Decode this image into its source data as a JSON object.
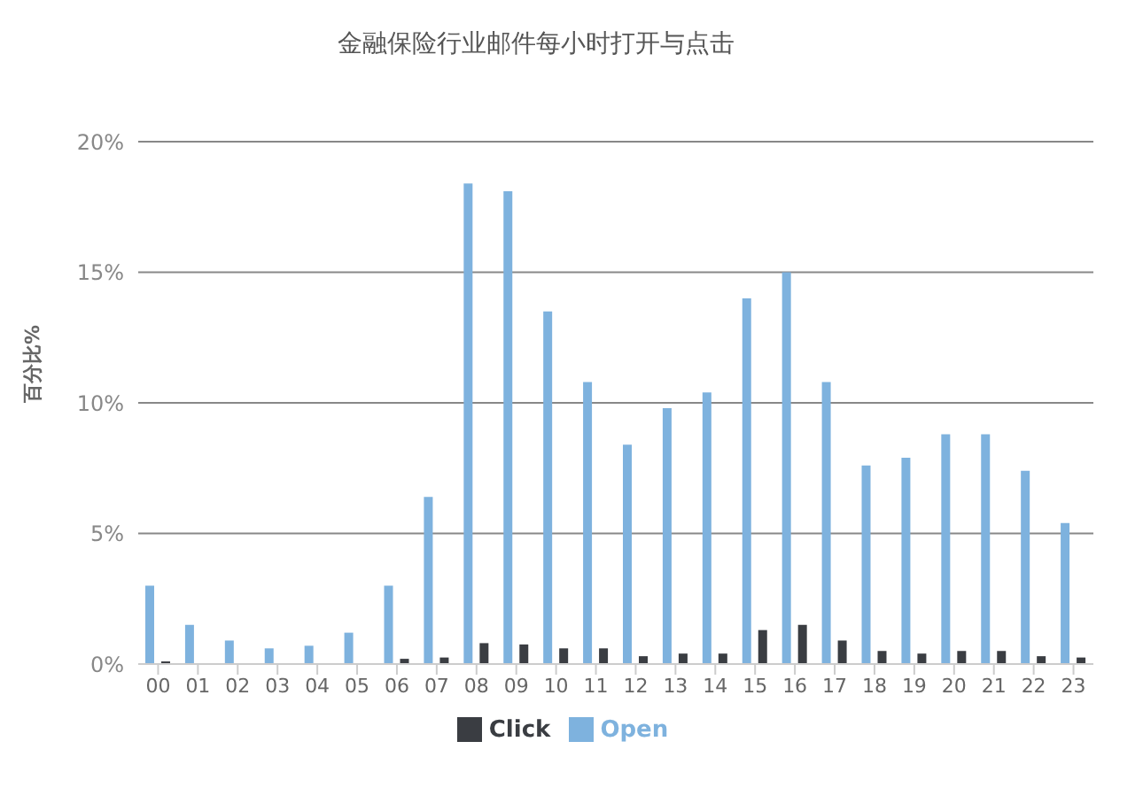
{
  "chart_data": {
    "type": "bar",
    "title": "金融保险行业邮件每小时打开与点击",
    "ylabel": "百分比%",
    "categories": [
      "00",
      "01",
      "02",
      "03",
      "04",
      "05",
      "06",
      "07",
      "08",
      "09",
      "10",
      "11",
      "12",
      "13",
      "14",
      "15",
      "16",
      "17",
      "18",
      "19",
      "20",
      "21",
      "22",
      "23"
    ],
    "series": [
      {
        "name": "Open",
        "color": "#7eb2de",
        "values": [
          3.0,
          1.5,
          0.9,
          0.6,
          0.7,
          1.2,
          3.0,
          6.4,
          18.4,
          18.1,
          13.5,
          10.8,
          8.4,
          9.8,
          10.4,
          14.0,
          15.0,
          10.8,
          7.6,
          7.9,
          8.8,
          8.8,
          7.4,
          5.4
        ]
      },
      {
        "name": "Click",
        "color": "#3a3d42",
        "values": [
          0.1,
          null,
          null,
          null,
          null,
          null,
          0.2,
          0.25,
          0.8,
          0.75,
          0.6,
          0.6,
          0.3,
          0.4,
          0.4,
          1.3,
          1.5,
          0.9,
          0.5,
          0.4,
          0.5,
          0.5,
          0.3,
          0.25
        ]
      }
    ],
    "ylim": [
      0,
      20
    ],
    "yticks": [
      {
        "value": 0,
        "label": "0%"
      },
      {
        "value": 5,
        "label": "5%"
      },
      {
        "value": 10,
        "label": "10%"
      },
      {
        "value": 15,
        "label": "15%"
      },
      {
        "value": 20,
        "label": "20%"
      }
    ],
    "grid": "y",
    "legend": "bottom"
  }
}
